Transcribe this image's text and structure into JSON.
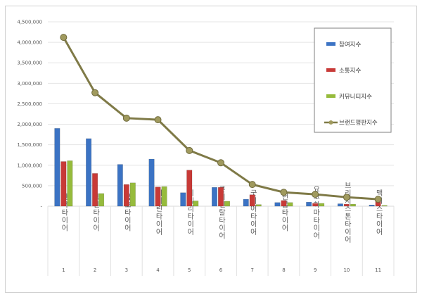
{
  "chart_data": {
    "type": "bar",
    "title": "",
    "xlabel": "",
    "ylabel": "",
    "ylim": [
      0,
      4500000
    ],
    "y_ticks": [
      "-",
      "500,000",
      "1,000,000",
      "1,500,000",
      "2,000,000",
      "2,500,000",
      "3,000,000",
      "3,500,000",
      "4,000,000",
      "4,500,000"
    ],
    "grid": true,
    "legend_position": "top-right",
    "categories": [
      "한국타이어",
      "넥센타이어",
      "금호타이어",
      "미쉐린타이어",
      "피렐리타이어",
      "콘티넨탈타이어",
      "굿이어타이어",
      "던롭타이어",
      "요코하마타이어",
      "브리지스톤타이어",
      "맥시스타이어"
    ],
    "ranks": [
      "1",
      "2",
      "3",
      "4",
      "5",
      "6",
      "7",
      "8",
      "9",
      "10",
      "11"
    ],
    "series": [
      {
        "name": "참여지수",
        "type": "bar",
        "color": "#3b73c4",
        "values": [
          1900000,
          1650000,
          1020000,
          1150000,
          330000,
          460000,
          170000,
          90000,
          100000,
          60000,
          30000
        ]
      },
      {
        "name": "소통지수",
        "type": "bar",
        "color": "#c83a37",
        "values": [
          1090000,
          800000,
          530000,
          470000,
          880000,
          460000,
          280000,
          140000,
          70000,
          50000,
          120000
        ]
      },
      {
        "name": "커뮤니티지수",
        "type": "bar",
        "color": "#96bb3c",
        "values": [
          1110000,
          310000,
          570000,
          480000,
          130000,
          120000,
          40000,
          90000,
          70000,
          50000,
          20000
        ]
      },
      {
        "name": "브랜드평판지수",
        "type": "line",
        "color": "#7f7a47",
        "values": [
          4120000,
          2770000,
          2150000,
          2110000,
          1360000,
          1060000,
          530000,
          340000,
          290000,
          220000,
          170000
        ]
      }
    ]
  }
}
